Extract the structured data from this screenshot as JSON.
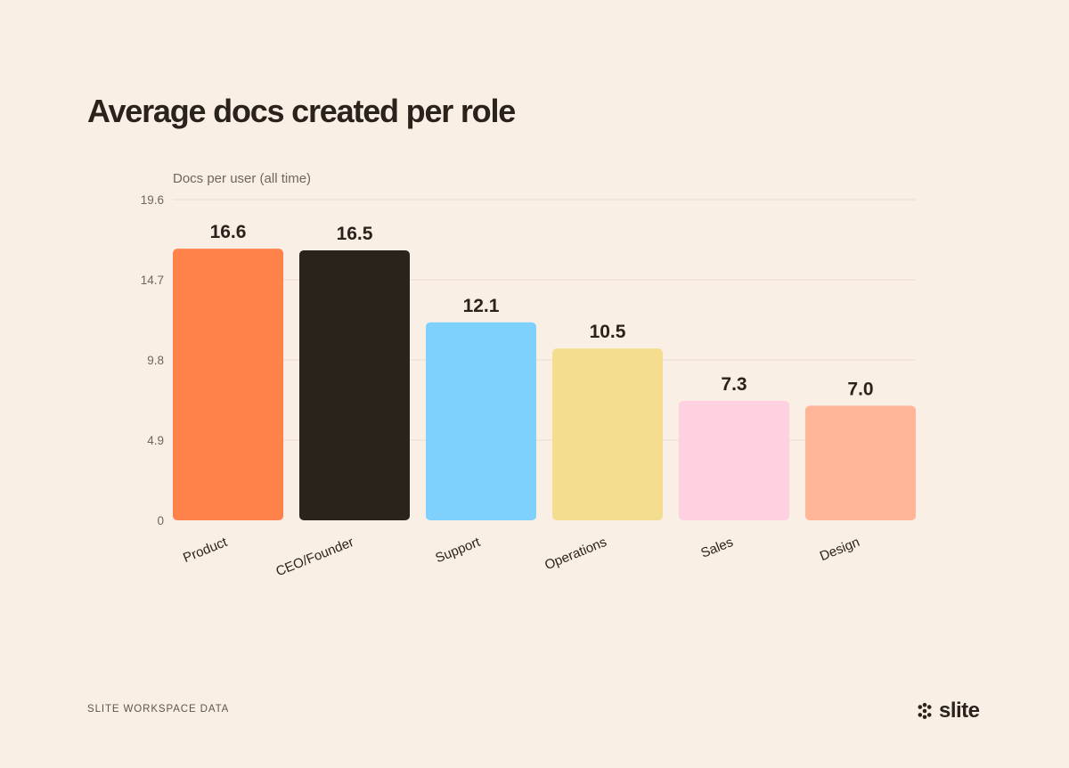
{
  "title": "Average docs created per role",
  "footer": {
    "source": "SLITE WORKSPACE DATA",
    "logo_text": "slite"
  },
  "logo_icon": "slite-logo-icon",
  "colors": {
    "background": "#f9efe5",
    "grid": "#efe4d8",
    "tick_text": "#6f665c",
    "value_text": "#2a231b"
  },
  "chart_data": {
    "type": "bar",
    "title": "Average docs created per role",
    "ylabel": "Docs per user (all time)",
    "xlabel": "",
    "categories": [
      "Product",
      "CEO/Founder",
      "Support",
      "Operations",
      "Sales",
      "Design"
    ],
    "values": [
      16.6,
      16.5,
      12.1,
      10.5,
      7.3,
      7.0
    ],
    "value_labels": [
      "16.6",
      "16.5",
      "12.1",
      "10.5",
      "7.3",
      "7.0"
    ],
    "bar_colors": [
      "#ff824a",
      "#2a231b",
      "#7fd1fd",
      "#f4dd8f",
      "#ffd1e0",
      "#ffb596"
    ],
    "yticks": [
      0,
      4.9,
      9.8,
      14.7,
      19.6
    ],
    "ytick_labels": [
      "0",
      "4.9",
      "9.8",
      "14.7",
      "19.6"
    ],
    "ylim": [
      0,
      19.6
    ],
    "grid": true,
    "legend": "none"
  }
}
